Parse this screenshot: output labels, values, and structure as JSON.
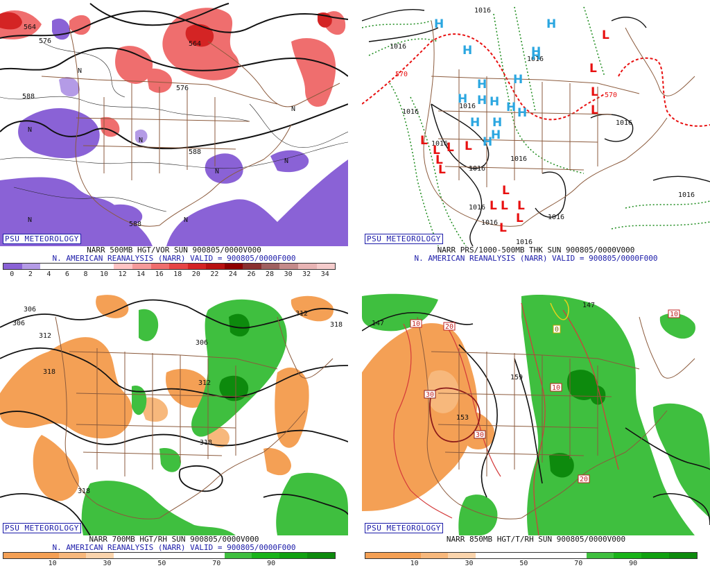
{
  "panels": [
    {
      "logo": "PSU METEOROLOGY",
      "caption1": "NARR 500MB HGT/VOR SUN 900805/0000V000",
      "caption2": "N. AMERICAN REANALYSIS (NARR) VALID = 900805/0000F000",
      "contour_labels": [
        "564",
        "576",
        "588",
        "564",
        "576",
        "588",
        "588"
      ],
      "marker_labels": [
        "N"
      ],
      "colorbar": {
        "colors": [
          "#8a62d6",
          "#b49be6",
          "#ffffff",
          "#ffffff",
          "#ffffff",
          "#ffffff",
          "#ffc4c4",
          "#f59a9a",
          "#ef6e6e",
          "#e64545",
          "#d42424",
          "#b81212",
          "#8e0000",
          "#8a3030",
          "#a06060",
          "#c48a8a",
          "#e8b4b4",
          "#f5cccc"
        ],
        "ticks": [
          "0",
          "2",
          "4",
          "6",
          "8",
          "10",
          "12",
          "14",
          "16",
          "18",
          "20",
          "22",
          "24",
          "26",
          "28",
          "30",
          "32",
          "34"
        ]
      }
    },
    {
      "logo": "PSU METEOROLOGY",
      "caption1": "NARR PRS/1000-500MB THK SUN 900805/0000V000",
      "caption2": "N. AMERICAN REANALYSIS (NARR) VALID = 900805/0000F000",
      "contour_labels": [
        "1016",
        "1016",
        "570",
        "1016",
        "1016",
        "1016",
        "1016",
        "1016",
        "1016",
        "1016",
        "1016",
        "1016",
        "1016",
        "1016",
        "1016",
        "570"
      ],
      "high_label": "H",
      "low_label": "L",
      "colors": {
        "high": "#2aa6e0",
        "low": "#e81010",
        "thickness_red": "#e81010",
        "thickness_green": "#1a8a1a"
      }
    },
    {
      "logo": "PSU METEOROLOGY",
      "caption1": "NARR 700MB HGT/RH SUN 900805/0000V000",
      "caption2": "N. AMERICAN REANALYSIS (NARR) VALID = 900805/0000F000",
      "contour_labels": [
        "306",
        "306",
        "312",
        "318",
        "306",
        "312",
        "318",
        "312",
        "318",
        "318"
      ],
      "colorbar": {
        "colors": [
          "#f4a055",
          "#f4a055",
          "#f7b87c",
          "#fad4ac",
          "#ffffff",
          "#ffffff",
          "#ffffff",
          "#ffffff",
          "#3fbf3f",
          "#19b319",
          "#10a010",
          "#0d8a0d"
        ],
        "ticks": [
          "10",
          "30",
          "50",
          "70",
          "90"
        ]
      }
    },
    {
      "logo": "PSU METEOROLOGY",
      "caption1": "NARR 850MB HGT/T/RH SUN 900805/0000V000",
      "caption2": "",
      "contour_labels": [
        "147",
        "147",
        "159",
        "153"
      ],
      "temp_labels": [
        "10",
        "20",
        "10",
        "10",
        "30",
        "30",
        "20",
        "0"
      ],
      "colorbar": {
        "colors": [
          "#f4a055",
          "#f4a055",
          "#f7b87c",
          "#fad4ac",
          "#ffffff",
          "#ffffff",
          "#ffffff",
          "#ffffff",
          "#3fbf3f",
          "#19b319",
          "#10a010",
          "#0d8a0d"
        ],
        "ticks": [
          "10",
          "30",
          "50",
          "70",
          "90"
        ]
      }
    }
  ]
}
